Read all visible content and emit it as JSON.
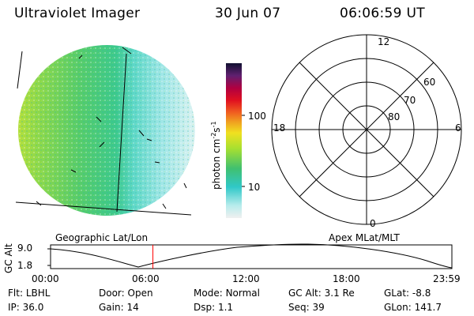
{
  "header": {
    "instrument": "Ultraviolet Imager",
    "date": "30 Jun 07",
    "time": "06:06:59 UT"
  },
  "colorbar": {
    "label": "photon cm",
    "label_sup1": "-2",
    "label_mid": "s",
    "label_sup2": "-1",
    "ticks": [
      "100",
      "10"
    ],
    "scale": "log"
  },
  "polar_plot": {
    "mlt_labels": {
      "top": "12",
      "left": "18",
      "right": "6",
      "bottom": "0"
    },
    "lat_labels": [
      "60",
      "70",
      "80"
    ]
  },
  "timeline": {
    "ylabel": "GC Alt",
    "yticks": [
      "9.0",
      "1.8"
    ],
    "left_caption": "Geographic Lat/Lon",
    "right_caption": "Apex MLat/MLT",
    "xticks": [
      "00:00",
      "06:00",
      "12:00",
      "18:00",
      "23:59"
    ],
    "current_time_hours": 6.12,
    "marker_color": "#ff0000"
  },
  "status": {
    "rows": [
      [
        {
          "key": "Flt:",
          "value": "LBHL"
        },
        {
          "key": "Door:",
          "value": "Open"
        },
        {
          "key": "Mode:",
          "value": "Normal"
        },
        {
          "key": "GC Alt:",
          "value": "3.1 Re"
        },
        {
          "key": "GLat:",
          "value": "-8.8"
        }
      ],
      [
        {
          "key": "IP:",
          "value": "36.0"
        },
        {
          "key": "Gain:",
          "value": "14"
        },
        {
          "key": "Dsp:",
          "value": "1.1"
        },
        {
          "key": "Seq:",
          "value": "39"
        },
        {
          "key": "GLon:",
          "value": "141.7"
        }
      ]
    ]
  }
}
